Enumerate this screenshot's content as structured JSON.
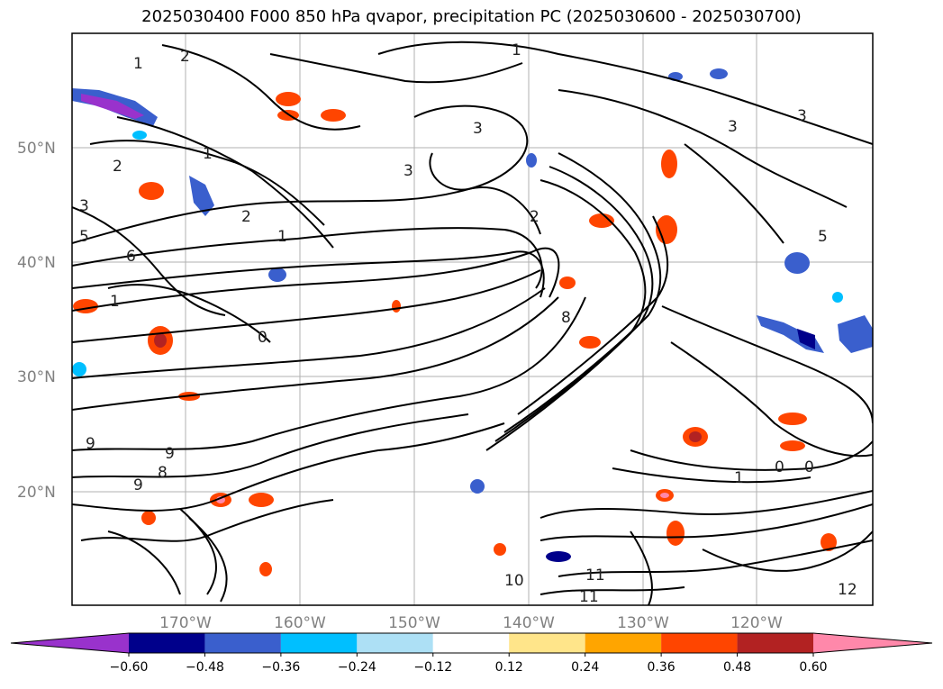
{
  "title": "2025030400 F000 850 hPa qvapor, precipitation PC (2025030600 - 2025030700)",
  "latitude_labels": [
    "50°N",
    "40°N",
    "30°N",
    "20°N"
  ],
  "longitude_labels": [
    "170°W",
    "160°W",
    "150°W",
    "140°W",
    "130°W",
    "120°W"
  ],
  "colorbar": {
    "colors": [
      "#9932CC",
      "#00008B",
      "#3A5FCD",
      "#00BFFF",
      "#ADE0F5",
      "#FFFFFF",
      "#FFE58A",
      "#FFA500",
      "#FF4500",
      "#B22222",
      "#FF88AA"
    ],
    "tick_labels": [
      "−0.60",
      "−0.48",
      "−0.36",
      "−0.24",
      "−0.12",
      "0.12",
      "0.24",
      "0.36",
      "0.48",
      "0.60"
    ]
  },
  "contour_labels": [
    "1",
    "2",
    "3",
    "5",
    "6",
    "8",
    "9",
    "0",
    "10",
    "11",
    "12"
  ]
}
